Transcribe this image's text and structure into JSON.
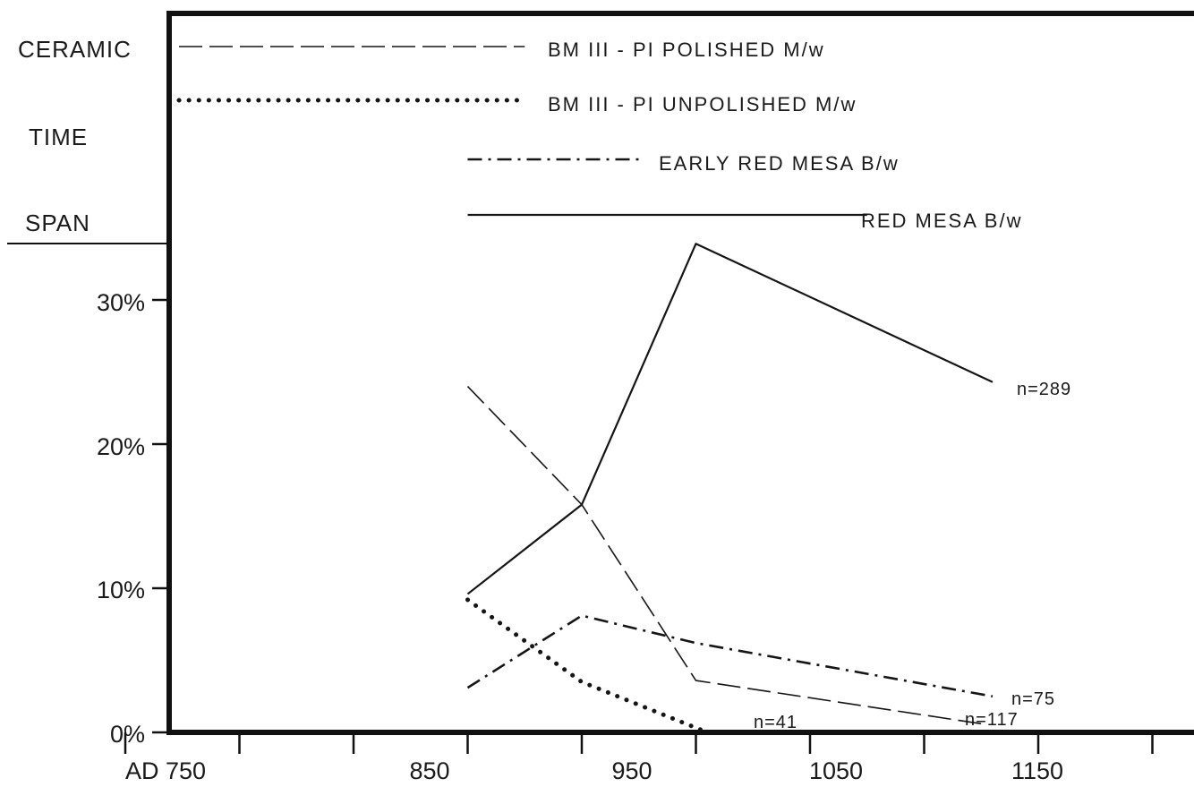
{
  "chart_data": {
    "type": "line",
    "side_labels": [
      "CERAMIC",
      "TIME",
      "SPAN"
    ],
    "x_ticks": [
      "AD 750",
      "850",
      "950",
      "1050",
      "1150"
    ],
    "y_ticks": [
      "0%",
      "10%",
      "20%",
      "30%"
    ],
    "xlim": [
      750,
      1200
    ],
    "ylim": [
      0,
      30
    ],
    "grid": false,
    "legend_position": "top",
    "time_spans": [
      {
        "label": "BM III - PI POLISHED M/w",
        "style": "dash",
        "start": 750,
        "end": 925
      },
      {
        "label": "BM III - PI UNPOLISHED M/w",
        "style": "dot",
        "start": 750,
        "end": 925
      },
      {
        "label": "EARLY RED MESA B/w",
        "style": "dashdot",
        "start": 900,
        "end": 975
      },
      {
        "label": "RED MESA B/w",
        "style": "solid",
        "start": 900,
        "end": 1075
      }
    ],
    "series": [
      {
        "name": "RED MESA B/w",
        "style": "solid",
        "x": [
          900,
          950,
          1000,
          1130
        ],
        "y": [
          9.6,
          15.8,
          33.9,
          24.3
        ]
      },
      {
        "name": "BM III - PI POLISHED M/w",
        "style": "dash",
        "x": [
          900,
          950,
          1000,
          1125
        ],
        "y": [
          24.0,
          15.8,
          3.6,
          0.6
        ]
      },
      {
        "name": "EARLY RED MESA B/w",
        "style": "dashdot",
        "x": [
          900,
          950,
          1000,
          1130
        ],
        "y": [
          3.1,
          8.1,
          6.2,
          2.5
        ]
      },
      {
        "name": "BM III - PI UNPOLISHED M/w",
        "style": "dot",
        "x": [
          900,
          950,
          1005
        ],
        "y": [
          9.2,
          3.5,
          0.0
        ]
      }
    ],
    "annotations": [
      {
        "text": "n=289",
        "series": 0
      },
      {
        "text": "n=117",
        "series": 1
      },
      {
        "text": "n=75",
        "series": 2
      },
      {
        "text": "n=41",
        "series": 3
      }
    ]
  }
}
